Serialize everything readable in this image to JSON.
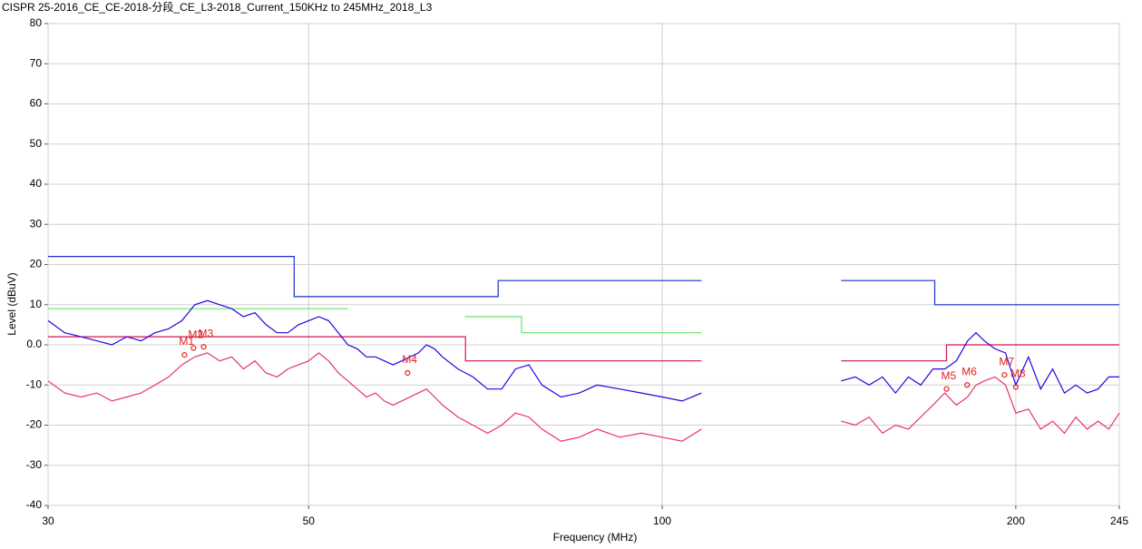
{
  "chart_data": {
    "type": "line",
    "title": "CISPR 25-2016_CE_CE-2018-分段_CE_L3-2018_Current_150KHz to 245MHz_2018_L3",
    "x_label": "Frequency (MHz)",
    "y_label": "Level (dBuV)",
    "x_log": true,
    "grid": true,
    "xlim": [
      30,
      245
    ],
    "ylim": [
      -40,
      80
    ],
    "xticks": [
      30,
      50,
      100,
      200,
      245
    ],
    "yticks": [
      -40,
      -30,
      -20,
      -10,
      {
        "value": 0,
        "label": "0.0"
      },
      10,
      20,
      30,
      40,
      50,
      60,
      70,
      80
    ],
    "series": [
      {
        "color": "#1a2fd0",
        "x": [
          30,
          48.6,
          48.6,
          72.5,
          72.5,
          108,
          null,
          142,
          170.6,
          170.6,
          245
        ],
        "values": [
          22,
          22,
          12,
          12,
          16,
          16,
          null,
          16,
          16,
          10,
          10
        ]
      },
      {
        "color": "#66e866",
        "x": [
          30,
          54,
          null,
          67.9,
          75.9,
          75.9,
          108
        ],
        "values": [
          9,
          9,
          null,
          7,
          7,
          3,
          3
        ]
      },
      {
        "color": "#d0164a",
        "x": [
          30,
          68,
          68,
          108,
          null,
          142,
          174.6,
          174.6,
          245
        ],
        "values": [
          2,
          2,
          -4,
          -4,
          null,
          -4,
          -4,
          0,
          0
        ]
      },
      {
        "color": "#2a00e0",
        "x": [
          30,
          31,
          32,
          33,
          34,
          35,
          36,
          37,
          38,
          39,
          40,
          41,
          42,
          43,
          44,
          45,
          46,
          47,
          48,
          49,
          50,
          51,
          52,
          53,
          54,
          55,
          56,
          57,
          58,
          59,
          60,
          62,
          63,
          64,
          65,
          67,
          69,
          71,
          73,
          75,
          77,
          79,
          82,
          85,
          88,
          92,
          96,
          100,
          104,
          108,
          null,
          142,
          146,
          150,
          154,
          158,
          162,
          166,
          170,
          174,
          178,
          182,
          185,
          188,
          192,
          196,
          200,
          205,
          210,
          215,
          220,
          225,
          230,
          235,
          240,
          245
        ],
        "values": [
          6,
          3,
          2,
          1,
          0,
          2,
          1,
          3,
          4,
          6,
          10,
          11,
          10,
          9,
          7,
          8,
          5,
          3,
          3,
          5,
          6,
          7,
          6,
          3,
          0,
          -1,
          -3,
          -3,
          -4,
          -5,
          -4,
          -2,
          0,
          -1,
          -3,
          -6,
          -8,
          -11,
          -11,
          -6,
          -5,
          -10,
          -13,
          -12,
          -10,
          -11,
          -12,
          -13,
          -14,
          -12,
          null,
          -9,
          -8,
          -10,
          -8,
          -12,
          -8,
          -10,
          -6,
          -6,
          -4,
          1,
          3,
          1,
          -1,
          -2,
          -10,
          -3,
          -11,
          -6,
          -12,
          -10,
          -12,
          -11,
          -8,
          -8
        ]
      },
      {
        "color": "#e8336a",
        "x": [
          30,
          31,
          32,
          33,
          34,
          35,
          36,
          37,
          38,
          39,
          40,
          41,
          42,
          43,
          44,
          45,
          46,
          47,
          48,
          49,
          50,
          51,
          52,
          53,
          54,
          55,
          56,
          57,
          58,
          59,
          60,
          62,
          63,
          64,
          65,
          67,
          69,
          71,
          73,
          75,
          77,
          79,
          82,
          85,
          88,
          92,
          96,
          100,
          104,
          108,
          null,
          142,
          146,
          150,
          154,
          158,
          162,
          166,
          170,
          174,
          178,
          182,
          185,
          188,
          192,
          196,
          200,
          205,
          210,
          215,
          220,
          225,
          230,
          235,
          240,
          245
        ],
        "values": [
          -9,
          -12,
          -13,
          -12,
          -14,
          -13,
          -12,
          -10,
          -8,
          -5,
          -3,
          -2,
          -4,
          -3,
          -6,
          -4,
          -7,
          -8,
          -6,
          -5,
          -4,
          -2,
          -4,
          -7,
          -9,
          -11,
          -13,
          -12,
          -14,
          -15,
          -14,
          -12,
          -11,
          -13,
          -15,
          -18,
          -20,
          -22,
          -20,
          -17,
          -18,
          -21,
          -24,
          -23,
          -21,
          -23,
          -22,
          -23,
          -24,
          -21,
          null,
          -19,
          -20,
          -18,
          -22,
          -20,
          -21,
          -18,
          -15,
          -12,
          -15,
          -13,
          -10,
          -9,
          -8,
          -10,
          -17,
          -16,
          -21,
          -19,
          -22,
          -18,
          -21,
          -19,
          -21,
          -17
        ]
      }
    ],
    "markers": [
      {
        "label": "M1",
        "x": 39.2,
        "y": -2.5
      },
      {
        "label": "M2",
        "x": 39.9,
        "y": -0.8
      },
      {
        "label": "M3",
        "x": 40.7,
        "y": -0.5
      },
      {
        "label": "M4",
        "x": 60.7,
        "y": -7
      },
      {
        "label": "M5",
        "x": 174.6,
        "y": -11
      },
      {
        "label": "M6",
        "x": 181.8,
        "y": -10
      },
      {
        "label": "M7",
        "x": 195.6,
        "y": -7.5
      },
      {
        "label": "M8",
        "x": 200,
        "y": -10.5
      }
    ]
  }
}
